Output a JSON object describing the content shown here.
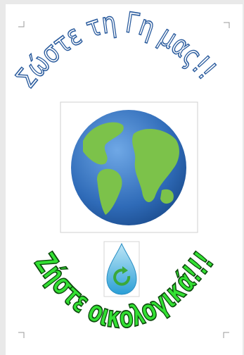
{
  "wordart_top": "Σώστε τη Γη μας!!",
  "wordart_bottom": "Ζήστε οικολογικά!!!"
}
